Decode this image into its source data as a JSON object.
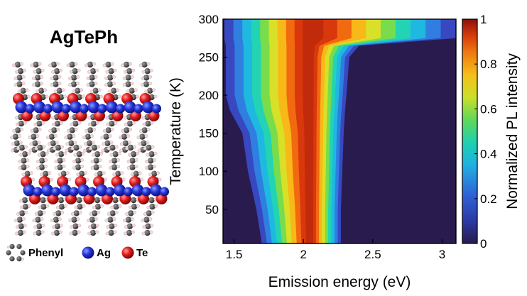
{
  "structure": {
    "title": "AgTePh",
    "legend": [
      {
        "label": "Phenyl",
        "icon": "phenyl-ring-icon",
        "color": "#4a4a4a"
      },
      {
        "label": "Ag",
        "icon": "silver-atom-icon",
        "color": "#1a2bd6"
      },
      {
        "label": "Te",
        "icon": "tellurium-atom-icon",
        "color": "#e01b1b"
      }
    ]
  },
  "chart_data": {
    "type": "heatmap",
    "xlabel": "Emission energy (eV)",
    "ylabel": "Temperature (K)",
    "colorbar_label": "Normalized PL intensity",
    "xlim": [
      1.42,
      3.1
    ],
    "ylim": [
      5,
      300
    ],
    "clim": [
      0,
      1
    ],
    "xticks": [
      1.5,
      2,
      2.5,
      3
    ],
    "yticks": [
      50,
      100,
      150,
      200,
      250,
      300
    ],
    "cticks": [
      0,
      0.2,
      0.4,
      0.6,
      0.8,
      1
    ],
    "colormap": "jet-like (dark navy to dark red)",
    "peak_energy_eV": 2.05,
    "emission_band": {
      "temperatures_K": [
        5,
        50,
        100,
        150,
        180,
        200,
        250,
        265,
        275,
        300
      ],
      "low_energy_edge_eV": [
        1.7,
        1.66,
        1.6,
        1.56,
        1.47,
        1.44,
        1.44,
        1.44,
        1.43,
        1.43
      ],
      "high_energy_edge_eV": [
        2.27,
        2.27,
        2.28,
        2.29,
        2.3,
        2.31,
        2.33,
        2.4,
        3.1,
        3.1
      ]
    }
  }
}
